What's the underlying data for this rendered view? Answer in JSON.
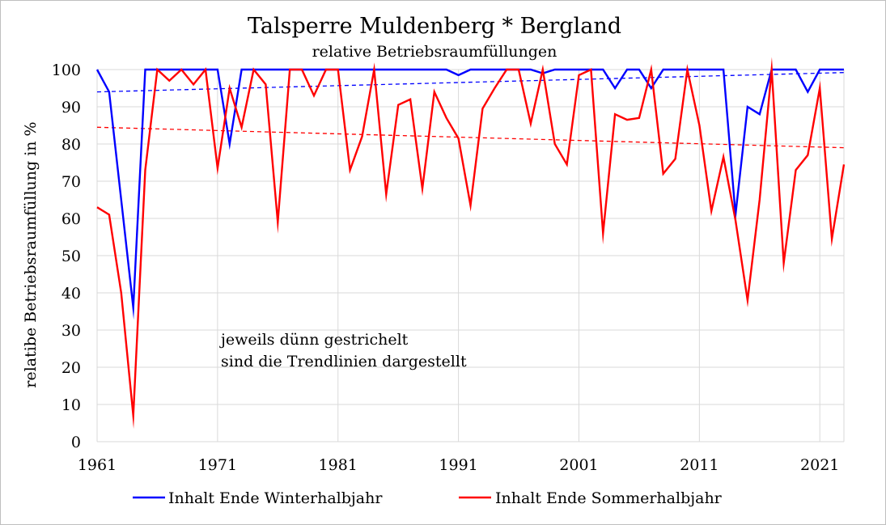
{
  "chart_data": {
    "type": "line",
    "title": "Talsperre Muldenberg * Bergland",
    "subtitle": "relative Betriebsraumfüllungen",
    "xlabel": "",
    "ylabel": "relatibe Betriebsraumfüllung in %",
    "xlim": [
      1961,
      2023
    ],
    "ylim": [
      0,
      100
    ],
    "x_ticks": [
      "1961",
      "1971",
      "1981",
      "1991",
      "2001",
      "2011",
      "2021"
    ],
    "y_ticks": [
      "0",
      "10",
      "20",
      "30",
      "40",
      "50",
      "60",
      "70",
      "80",
      "90",
      "100"
    ],
    "grid": true,
    "legend_position": "bottom",
    "annotation": [
      "jeweils dünn gestrichelt",
      "sind die Trendlinien dargestellt"
    ],
    "x": [
      1961,
      1962,
      1963,
      1964,
      1965,
      1966,
      1967,
      1968,
      1969,
      1970,
      1971,
      1972,
      1973,
      1974,
      1975,
      1976,
      1977,
      1978,
      1979,
      1980,
      1981,
      1982,
      1983,
      1984,
      1985,
      1986,
      1987,
      1988,
      1989,
      1990,
      1991,
      1992,
      1993,
      1994,
      1995,
      1996,
      1997,
      1998,
      1999,
      2000,
      2001,
      2002,
      2003,
      2004,
      2005,
      2006,
      2007,
      2008,
      2009,
      2010,
      2011,
      2012,
      2013,
      2014,
      2015,
      2016,
      2017,
      2018,
      2019,
      2020,
      2021,
      2022,
      2023
    ],
    "series": [
      {
        "name": "Inhalt Ende Winterhalbjahr",
        "color": "#0000ff",
        "values": [
          100,
          94,
          65,
          36,
          100,
          100,
          100,
          100,
          100,
          100,
          100,
          80,
          100,
          100,
          100,
          100,
          100,
          100,
          100,
          100,
          100,
          100,
          100,
          100,
          100,
          100,
          100,
          100,
          100,
          100,
          98.5,
          100,
          100,
          100,
          100,
          100,
          100,
          99,
          100,
          100,
          100,
          100,
          100,
          95,
          100,
          100,
          95,
          100,
          100,
          100,
          100,
          100,
          100,
          61,
          90,
          88,
          100,
          100,
          100,
          94,
          100,
          100,
          100
        ],
        "trend": [
          94,
          99.2
        ]
      },
      {
        "name": "Inhalt Ende Sommerhalbjahr",
        "color": "#ff0000",
        "values": [
          63,
          61,
          40,
          7,
          73,
          100,
          97,
          100,
          96,
          100,
          73.5,
          95,
          84.5,
          100,
          96,
          59,
          100,
          100,
          93,
          100,
          100,
          73,
          82,
          100,
          66.5,
          90.5,
          92,
          68,
          94,
          87,
          81.5,
          63.5,
          89.5,
          95,
          100,
          100,
          85.5,
          100,
          80,
          74.5,
          98.5,
          100,
          56,
          88,
          86.5,
          87,
          100,
          72,
          76,
          100,
          85,
          62,
          76.5,
          59.5,
          38,
          65,
          100,
          48,
          73,
          77,
          95,
          54.5,
          74.5
        ],
        "trend": [
          84.5,
          79
        ]
      }
    ]
  }
}
